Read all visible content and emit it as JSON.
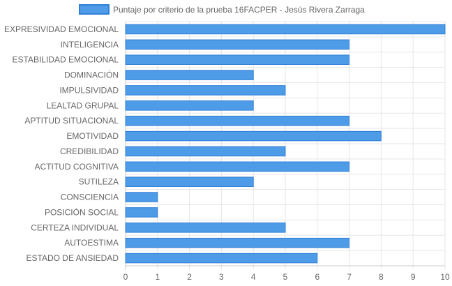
{
  "chart_data": {
    "type": "bar",
    "orientation": "horizontal",
    "categories": [
      "EXPRESIVIDAD EMOCIONAL",
      "INTELIGENCIA",
      "ESTABILIDAD EMOCIONAL",
      "DOMINACIÓN",
      "IMPULSIVIDAD",
      "LEALTAD GRUPAL",
      "APTITUD SITUACIONAL",
      "EMOTIVIDAD",
      "CREDIBILIDAD",
      "ACTITUD COGNITIVA",
      "SUTILEZA",
      "CONSCIENCIA",
      "POSICIÓN SOCIAL",
      "CERTEZA INDIVIDUAL",
      "AUTOESTIMA",
      "ESTADO DE ANSIEDAD"
    ],
    "series": [
      {
        "name": "Puntaje por criterio de la prueba 16FACPER - Jesús Rivera Zarraga",
        "values": [
          10,
          7,
          7,
          4,
          5,
          4,
          7,
          8,
          5,
          7,
          4,
          1,
          1,
          5,
          7,
          6
        ],
        "color": "#4e9be8",
        "border_color": "#2f7fd6"
      }
    ],
    "xlim": [
      0,
      10
    ],
    "x_ticks": [
      "0",
      "1",
      "2",
      "3",
      "4",
      "5",
      "6",
      "7",
      "8",
      "9",
      "10"
    ],
    "grid": true,
    "legend_position": "top",
    "grid_color": "#e6e6e6",
    "axis_text_color": "#666666"
  }
}
